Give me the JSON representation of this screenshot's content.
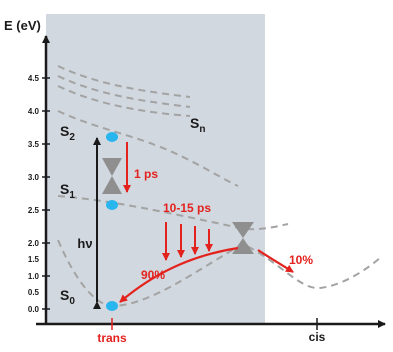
{
  "axis": {
    "y_title": "E (eV)",
    "y_ticks": [
      "0.0",
      "0.5",
      "1.0",
      "1.5",
      "2.0",
      "2.5",
      "3.0",
      "3.5",
      "4.0",
      "4.5"
    ],
    "x_labels": {
      "trans": "trans",
      "cis": "cis"
    }
  },
  "states": {
    "s0": {
      "main": "S",
      "sub": "0"
    },
    "s1": {
      "main": "S",
      "sub": "1"
    },
    "s2": {
      "main": "S",
      "sub": "2"
    },
    "sn": {
      "main": "S",
      "sub": "n"
    }
  },
  "annotations": {
    "hv": "hν",
    "fast": "1 ps",
    "slow": "10-15 ps",
    "trans_yield": "90%",
    "cis_yield": "10%"
  },
  "colors": {
    "panel": "#d2d8df",
    "arrow_red": "#e3221e",
    "population": "#29b6ee",
    "curve": "#a3a3a3",
    "conical": "#8f8f8f",
    "axis": "#1a1a1a"
  }
}
